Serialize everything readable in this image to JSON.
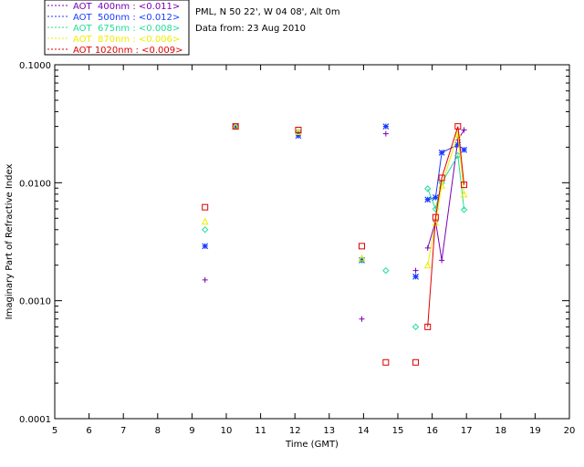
{
  "info": {
    "site_line": "PML, N 50 22', W 04 08', Alt 0m",
    "date_line": "Data from: 23 Aug 2010"
  },
  "chart_data": {
    "type": "scatter",
    "title": "",
    "xlabel": "Time (GMT)",
    "ylabel": "Imaginary Part of Refractive Index",
    "x_range": [
      5,
      20
    ],
    "x_ticks": [
      "5",
      "6",
      "7",
      "8",
      "9",
      "10",
      "11",
      "12",
      "13",
      "14",
      "15",
      "16",
      "17",
      "18",
      "19",
      "20"
    ],
    "y_scale": "log",
    "y_range": [
      0.0001,
      0.1
    ],
    "y_ticks": [
      {
        "value": 0.1,
        "label": "0.1000"
      },
      {
        "value": 0.01,
        "label": "0.0100"
      },
      {
        "value": 0.001,
        "label": "0.0010"
      },
      {
        "value": 0.0001,
        "label": "0.0001"
      }
    ],
    "legend_position": "top-left, outside plot",
    "series": [
      {
        "name": "AOT 400nm",
        "label": "AOT  400nm : <0.011>",
        "color": "#7b00b4",
        "marker": "plus",
        "points": [
          [
            9.38,
            0.0015
          ],
          [
            10.27,
            0.03
          ],
          [
            12.1,
            0.026
          ],
          [
            13.95,
            0.0007
          ],
          [
            14.65,
            0.026
          ],
          [
            15.52,
            0.0018
          ],
          [
            15.87,
            0.0028
          ],
          [
            16.1,
            0.0047
          ],
          [
            16.28,
            0.0022
          ],
          [
            16.75,
            0.023
          ],
          [
            16.93,
            0.028
          ]
        ]
      },
      {
        "name": "AOT 500nm",
        "label": "AOT  500nm : <0.012>",
        "color": "#1a3cff",
        "marker": "asterisk",
        "points": [
          [
            9.38,
            0.0029
          ],
          [
            10.27,
            0.03
          ],
          [
            12.1,
            0.025
          ],
          [
            13.95,
            0.0022
          ],
          [
            14.65,
            0.03
          ],
          [
            15.52,
            0.0016
          ],
          [
            15.87,
            0.0072
          ],
          [
            16.1,
            0.0075
          ],
          [
            16.28,
            0.018
          ],
          [
            16.75,
            0.021
          ],
          [
            16.93,
            0.019
          ]
        ]
      },
      {
        "name": "AOT 675nm",
        "label": "AOT  675nm : <0.008>",
        "color": "#22dd99",
        "marker": "diamond",
        "points": [
          [
            9.38,
            0.004
          ],
          [
            10.27,
            0.03
          ],
          [
            12.1,
            0.027
          ],
          [
            13.95,
            0.0022
          ],
          [
            14.65,
            0.0018
          ],
          [
            15.52,
            0.0006
          ],
          [
            15.87,
            0.0089
          ],
          [
            16.1,
            0.006
          ],
          [
            16.28,
            0.01
          ],
          [
            16.75,
            0.017
          ],
          [
            16.93,
            0.0059
          ]
        ]
      },
      {
        "name": "AOT 870nm",
        "label": "AOT  870nm : <0.006>",
        "color": "#eeee00",
        "marker": "triangle",
        "points": [
          [
            9.38,
            0.0047
          ],
          [
            10.27,
            0.03
          ],
          [
            12.1,
            0.027
          ],
          [
            13.95,
            0.0023
          ],
          [
            15.87,
            0.002
          ],
          [
            16.1,
            0.0046
          ],
          [
            16.28,
            0.0095
          ],
          [
            16.75,
            0.026
          ],
          [
            16.93,
            0.008
          ]
        ]
      },
      {
        "name": "AOT 1020nm",
        "label": "AOT 1020nm : <0.009>",
        "color": "#dd0000",
        "marker": "square",
        "points": [
          [
            9.38,
            0.0062
          ],
          [
            10.27,
            0.03
          ],
          [
            12.1,
            0.028
          ],
          [
            13.95,
            0.0029
          ],
          [
            14.65,
            0.0003
          ],
          [
            15.52,
            0.0003
          ],
          [
            15.87,
            0.0006
          ],
          [
            16.1,
            0.0051
          ],
          [
            16.28,
            0.011
          ],
          [
            16.75,
            0.03
          ],
          [
            16.93,
            0.0096
          ]
        ]
      }
    ],
    "connected_segment_x_min": 15.8
  }
}
